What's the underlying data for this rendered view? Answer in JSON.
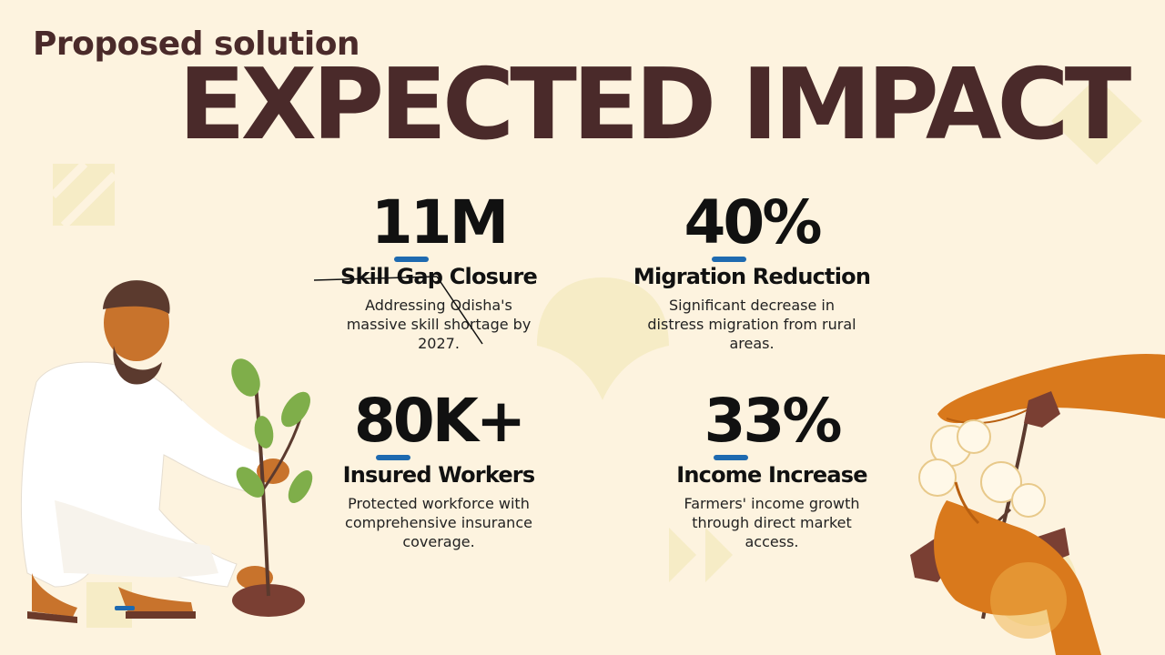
{
  "slide": {
    "subtitle": "Proposed solution",
    "title": "EXPECTED IMPACT"
  },
  "stats": [
    {
      "value": "11M",
      "label": "Skill Gap Closure",
      "description": "Addressing Odisha's massive skill shortage by 2027."
    },
    {
      "value": "40%",
      "label": "Migration Reduction",
      "description": "Significant decrease in distress migration from rural areas."
    },
    {
      "value": "80K+",
      "label": "Insured Workers",
      "description": "Protected workforce with comprehensive insurance coverage."
    },
    {
      "value": "33%",
      "label": "Income Increase",
      "description": "Farmers' income growth through direct market access."
    }
  ],
  "colors": {
    "background": "#fdf3df",
    "title": "#4a2a2a",
    "accent_bar": "#1e6ab0",
    "decor_shape": "#f6ecc6"
  },
  "illustrations": {
    "left": "farmer-planting-sapling-illustration",
    "right": "hand-picking-cotton-illustration"
  }
}
